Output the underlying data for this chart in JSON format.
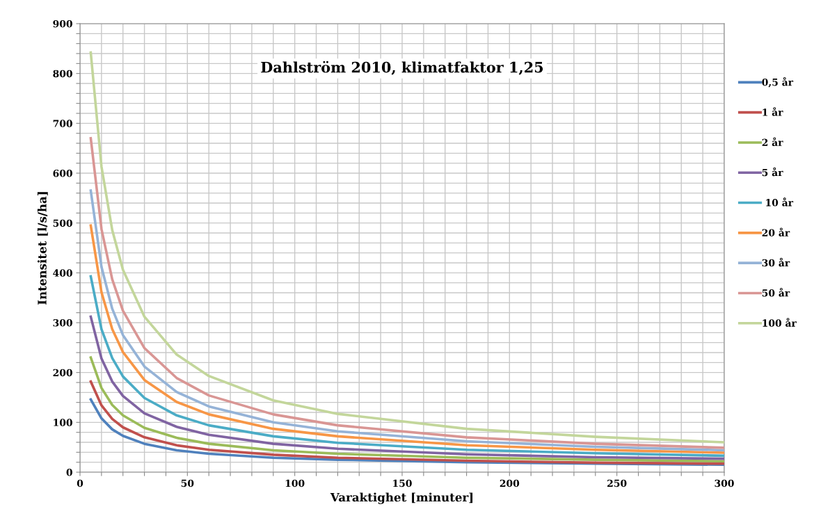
{
  "chart_data": {
    "type": "line",
    "title": "Dahlström 2010, klimatfaktor 1,25",
    "xlabel": "Varaktighet [minuter]",
    "ylabel": "Intensitet [l/s/ha]",
    "x": [
      5,
      10,
      15,
      20,
      30,
      45,
      60,
      90,
      120,
      180,
      240,
      300
    ],
    "series": [
      {
        "name": "0,5 år",
        "color": "#4f81bd",
        "values": [
          146,
          108,
          86,
          73,
          57,
          44,
          37,
          29,
          25,
          20,
          17,
          15
        ]
      },
      {
        "name": "1 år",
        "color": "#c0504d",
        "values": [
          182,
          134,
          107,
          90,
          70,
          54,
          45,
          35,
          29,
          23,
          19,
          17
        ]
      },
      {
        "name": "2 år",
        "color": "#9bbb59",
        "values": [
          230,
          169,
          135,
          114,
          89,
          69,
          57,
          44,
          37,
          29,
          25,
          22
        ]
      },
      {
        "name": "5 år",
        "color": "#8064a2",
        "values": [
          312,
          228,
          182,
          153,
          118,
          91,
          75,
          57,
          47,
          36,
          30,
          27
        ]
      },
      {
        "name": " 10 år",
        "color": "#4bacc6",
        "values": [
          393,
          287,
          229,
          192,
          149,
          114,
          94,
          72,
          59,
          45,
          38,
          33
        ]
      },
      {
        "name": "20 år",
        "color": "#f79646",
        "values": [
          495,
          361,
          287,
          241,
          185,
          141,
          116,
          87,
          72,
          54,
          45,
          39
        ]
      },
      {
        "name": "30 år",
        "color": "#95b3d7",
        "values": [
          565,
          412,
          328,
          275,
          212,
          161,
          132,
          100,
          82,
          62,
          51,
          44
        ]
      },
      {
        "name": "50 år",
        "color": "#d99694",
        "values": [
          670,
          488,
          387,
          324,
          249,
          189,
          154,
          116,
          94,
          70,
          57,
          49
        ]
      },
      {
        "name": "100 år",
        "color": "#c3d69b",
        "values": [
          842,
          613,
          486,
          406,
          312,
          236,
          193,
          144,
          117,
          87,
          71,
          60
        ]
      }
    ],
    "xlim": [
      0,
      300
    ],
    "xticks": [
      0,
      {
        "value": 10,
        "label": null
      },
      {
        "value": 20,
        "label": null
      },
      {
        "value": 30,
        "label": null
      },
      {
        "value": 40,
        "label": null
      },
      50,
      {
        "value": 60,
        "label": null
      },
      {
        "value": 70,
        "label": null
      },
      {
        "value": 80,
        "label": null
      },
      {
        "value": 90,
        "label": null
      },
      100,
      {
        "value": 110,
        "label": null
      },
      {
        "value": 120,
        "label": null
      },
      {
        "value": 130,
        "label": null
      },
      {
        "value": 140,
        "label": null
      },
      150,
      {
        "value": 160,
        "label": null
      },
      {
        "value": 170,
        "label": null
      },
      {
        "value": 180,
        "label": null
      },
      {
        "value": 190,
        "label": null
      },
      200,
      {
        "value": 210,
        "label": null
      },
      {
        "value": 220,
        "label": null
      },
      {
        "value": 230,
        "label": null
      },
      {
        "value": 240,
        "label": null
      },
      250,
      {
        "value": 260,
        "label": null
      },
      {
        "value": 270,
        "label": null
      },
      {
        "value": 280,
        "label": null
      },
      {
        "value": 290,
        "label": null
      },
      300
    ],
    "ylim": [
      0,
      900
    ],
    "yticks": [
      0,
      {
        "value": 20,
        "label": null
      },
      {
        "value": 40,
        "label": null
      },
      {
        "value": 60,
        "label": null
      },
      {
        "value": 80,
        "label": null
      },
      100,
      {
        "value": 120,
        "label": null
      },
      {
        "value": 140,
        "label": null
      },
      {
        "value": 160,
        "label": null
      },
      {
        "value": 180,
        "label": null
      },
      200,
      {
        "value": 220,
        "label": null
      },
      {
        "value": 240,
        "label": null
      },
      {
        "value": 260,
        "label": null
      },
      {
        "value": 280,
        "label": null
      },
      300,
      {
        "value": 320,
        "label": null
      },
      {
        "value": 340,
        "label": null
      },
      {
        "value": 360,
        "label": null
      },
      {
        "value": 380,
        "label": null
      },
      400,
      {
        "value": 420,
        "label": null
      },
      {
        "value": 440,
        "label": null
      },
      {
        "value": 460,
        "label": null
      },
      {
        "value": 480,
        "label": null
      },
      500,
      {
        "value": 520,
        "label": null
      },
      {
        "value": 540,
        "label": null
      },
      {
        "value": 560,
        "label": null
      },
      {
        "value": 580,
        "label": null
      },
      600,
      {
        "value": 620,
        "label": null
      },
      {
        "value": 640,
        "label": null
      },
      {
        "value": 660,
        "label": null
      },
      {
        "value": 680,
        "label": null
      },
      700,
      {
        "value": 720,
        "label": null
      },
      {
        "value": 740,
        "label": null
      },
      {
        "value": 760,
        "label": null
      },
      {
        "value": 780,
        "label": null
      },
      800,
      {
        "value": 820,
        "label": null
      },
      {
        "value": 840,
        "label": null
      },
      {
        "value": 860,
        "label": null
      },
      {
        "value": 880,
        "label": null
      },
      900
    ],
    "grid": true,
    "legend": "right",
    "marker": "none",
    "line_style": "solid"
  }
}
